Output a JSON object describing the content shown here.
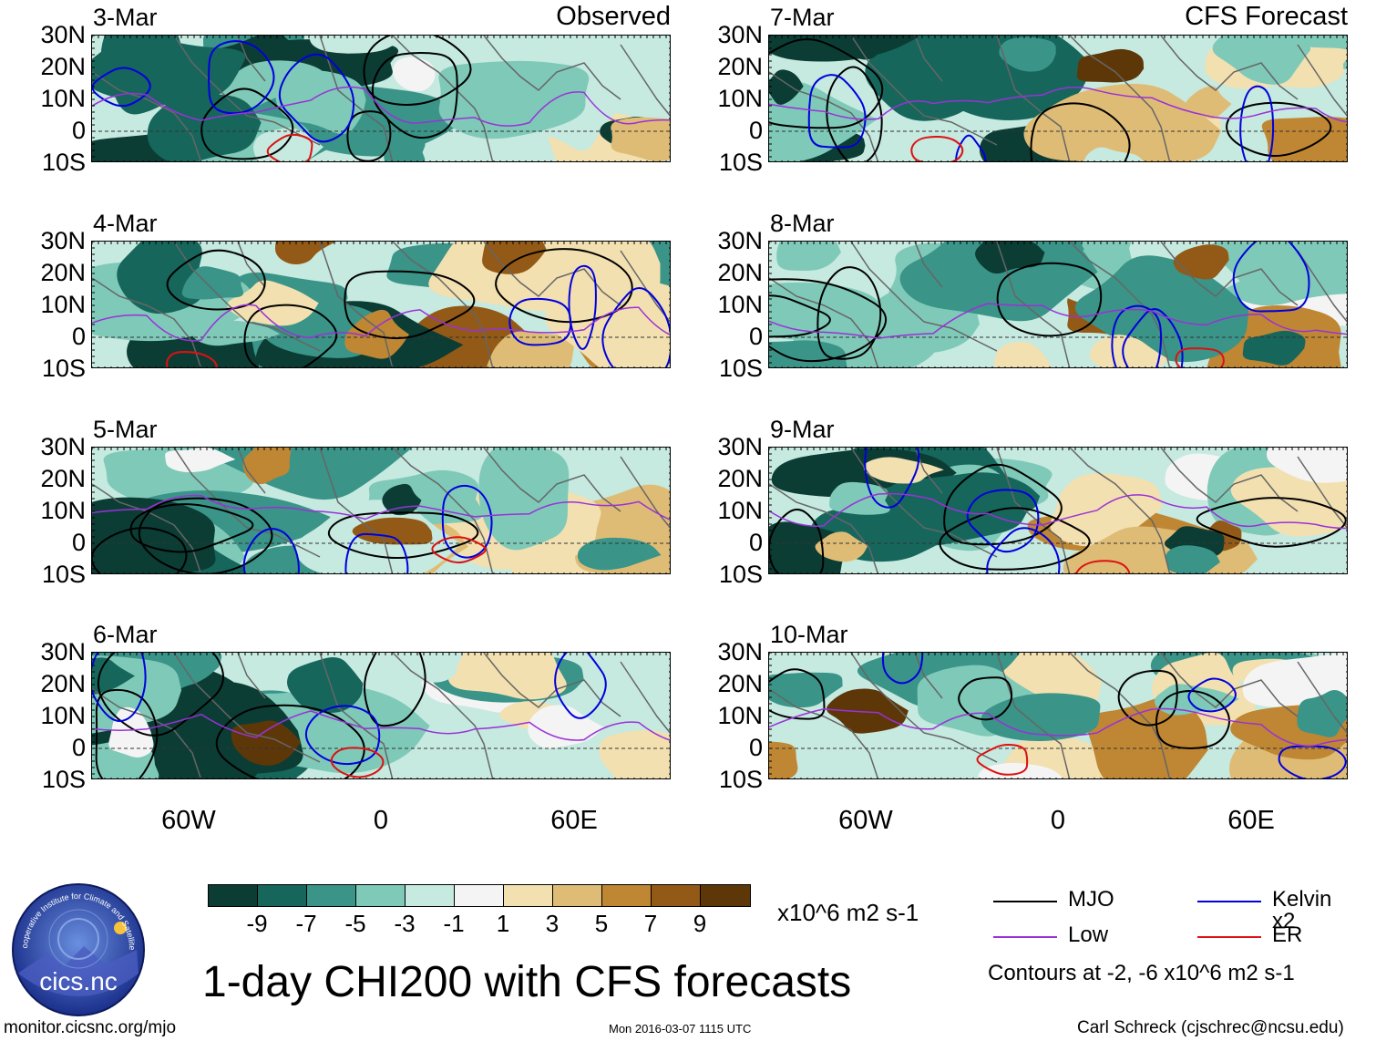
{
  "chart_data": {
    "type": "heatmap",
    "title": "1-day CHI200 with CFS forecasts",
    "variable": "CHI200",
    "units": "x10^6 m2 s-1",
    "lat_ticks": [
      "30N",
      "20N",
      "10N",
      "0",
      "10S"
    ],
    "lon_ticks": [
      "60W",
      "0",
      "60E"
    ],
    "lat_range": [
      -10,
      30
    ],
    "lon_range": [
      -90,
      90
    ],
    "observed_label": "Observed",
    "forecast_label": "CFS Forecast",
    "observed_panels": [
      "3-Mar",
      "4-Mar",
      "5-Mar",
      "6-Mar"
    ],
    "forecast_panels": [
      "7-Mar",
      "8-Mar",
      "9-Mar",
      "10-Mar"
    ],
    "colorbar": {
      "ticks": [
        "-9",
        "-7",
        "-5",
        "-3",
        "-1",
        "1",
        "3",
        "5",
        "7",
        "9"
      ],
      "colors": [
        "#0b3d35",
        "#16665c",
        "#3a9488",
        "#7fc9b8",
        "#c6e9e0",
        "#f4f4f4",
        "#f3e0b0",
        "#dfbc76",
        "#bf8633",
        "#925a16",
        "#5e3708"
      ]
    },
    "legend": [
      {
        "name": "MJO",
        "color": "#000000"
      },
      {
        "name": "Kelvin x2",
        "color": "#0000dd"
      },
      {
        "name": "Low",
        "color": "#9932d8"
      },
      {
        "name": "ER",
        "color": "#dd1111"
      }
    ],
    "contour_note": "Contours at -2, -6 x10^6 m2 s-1"
  },
  "footer": {
    "url": "monitor.cicsnc.org/mjo",
    "timestamp": "Mon 2016-03-07 1115 UTC",
    "author": "Carl Schreck (cjschrec@ncsu.edu)"
  },
  "logo": {
    "text": "cics.nc",
    "ring_text": "Cooperative Institute for Climate and Satellites"
  }
}
